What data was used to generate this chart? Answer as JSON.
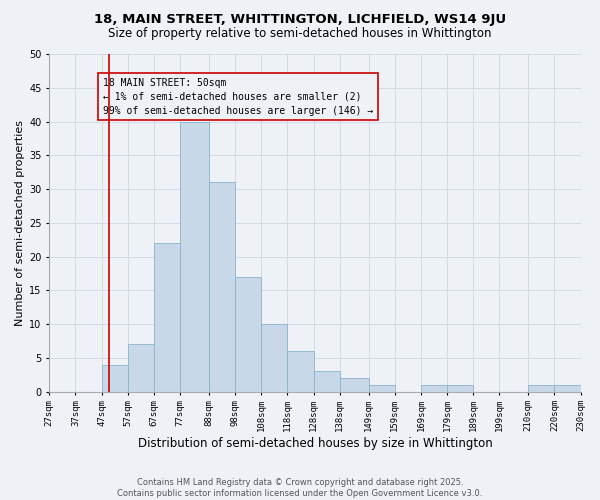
{
  "title": "18, MAIN STREET, WHITTINGTON, LICHFIELD, WS14 9JU",
  "subtitle": "Size of property relative to semi-detached houses in Whittington",
  "xlabel": "Distribution of semi-detached houses by size in Whittington",
  "ylabel": "Number of semi-detached properties",
  "footnote": "Contains HM Land Registry data © Crown copyright and database right 2025.\nContains public sector information licensed under the Open Government Licence v3.0.",
  "annotation_title": "18 MAIN STREET: 50sqm",
  "annotation_line1": "← 1% of semi-detached houses are smaller (2)",
  "annotation_line2": "99% of semi-detached houses are larger (146) →",
  "bar_left_edges": [
    27,
    37,
    47,
    57,
    67,
    77,
    88,
    98,
    108,
    118,
    128,
    138,
    149,
    159,
    169,
    179,
    189,
    199,
    210,
    220
  ],
  "bar_widths": [
    10,
    10,
    10,
    10,
    10,
    11,
    10,
    10,
    10,
    10,
    10,
    11,
    10,
    10,
    10,
    10,
    10,
    11,
    10,
    10
  ],
  "bar_heights": [
    0,
    0,
    4,
    7,
    22,
    40,
    31,
    17,
    10,
    6,
    3,
    2,
    1,
    0,
    1,
    1,
    0,
    0,
    1,
    1
  ],
  "bar_color": "#c8d8e8",
  "bar_edgecolor": "#8ab4cc",
  "vline_x": 50,
  "vline_color": "#cc0000",
  "ylim": [
    0,
    50
  ],
  "yticks": [
    0,
    5,
    10,
    15,
    20,
    25,
    30,
    35,
    40,
    45,
    50
  ],
  "x_tick_labels": [
    "27sqm",
    "37sqm",
    "47sqm",
    "57sqm",
    "67sqm",
    "77sqm",
    "88sqm",
    "98sqm",
    "108sqm",
    "118sqm",
    "128sqm",
    "138sqm",
    "149sqm",
    "159sqm",
    "169sqm",
    "179sqm",
    "189sqm",
    "199sqm",
    "210sqm",
    "220sqm",
    "230sqm"
  ],
  "x_tick_positions": [
    27,
    37,
    47,
    57,
    67,
    77,
    88,
    98,
    108,
    118,
    128,
    138,
    149,
    159,
    169,
    179,
    189,
    199,
    210,
    220,
    230
  ],
  "grid_color": "#d0d8e0",
  "background_color": "#eef2f6",
  "title_fontsize": 9.5,
  "subtitle_fontsize": 8.5,
  "axis_label_fontsize": 8,
  "tick_fontsize": 6.5,
  "footnote_fontsize": 6,
  "annotation_fontsize": 7
}
